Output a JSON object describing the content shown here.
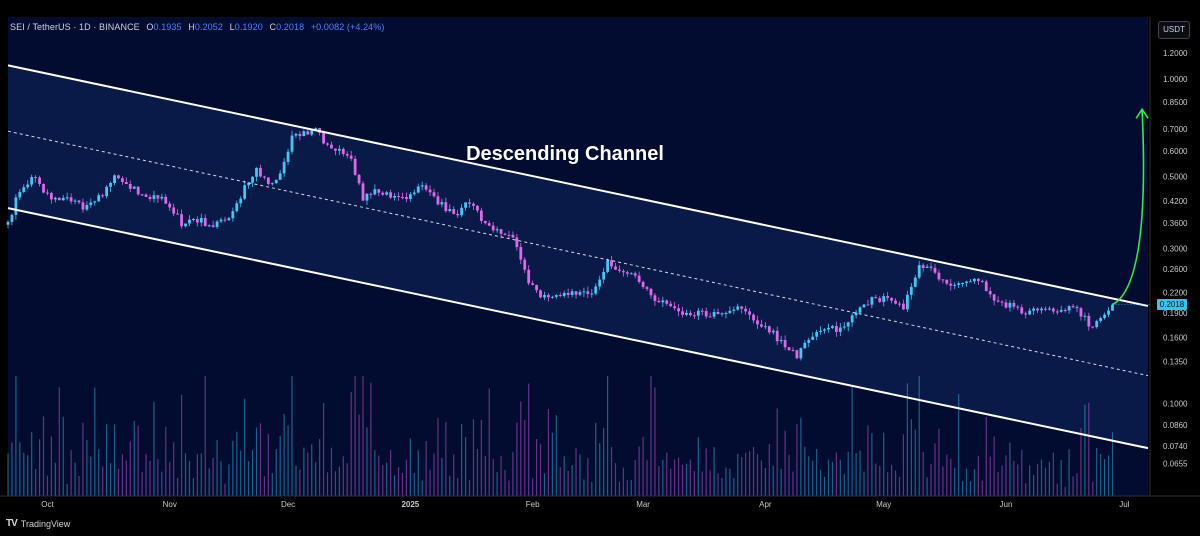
{
  "header": {
    "symbol": "SEI / TetherUS · 1D · BINANCE",
    "open_label": "O",
    "open_value": "0.1935",
    "high_label": "H",
    "high_value": "0.2052",
    "low_label": "L",
    "low_value": "0.1920",
    "close_label": "C",
    "close_value": "0.2018",
    "change": "+0.0082 (+4.24%)"
  },
  "currency_button": "USDT",
  "brand": {
    "logo": "TV",
    "name": "TradingView"
  },
  "chart_data": {
    "type": "candlestick",
    "symbol": "SEI/USDT",
    "exchange": "BINANCE",
    "timeframe": "1D",
    "title": "Descending Channel",
    "last_price": 0.2018,
    "last_price_label": "0.2018",
    "y_scale": "log",
    "y_range": [
      0.052,
      1.55
    ],
    "y_ticks": [
      "1.4000",
      "1.2000",
      "1.0000",
      "0.8500",
      "0.7000",
      "0.6000",
      "0.5000",
      "0.4200",
      "0.3600",
      "0.3000",
      "0.2600",
      "0.2200",
      "0.1900",
      "0.1600",
      "0.1350",
      "0.1000",
      "0.0860",
      "0.0740",
      "0.0655"
    ],
    "x_range": [
      "2024-09-21",
      "2025-07-07"
    ],
    "x_ticks": [
      {
        "label": "Oct",
        "date": "2024-10-01"
      },
      {
        "label": "Nov",
        "date": "2024-11-01"
      },
      {
        "label": "Dec",
        "date": "2024-12-01"
      },
      {
        "label": "2025",
        "date": "2025-01-01"
      },
      {
        "label": "Feb",
        "date": "2025-02-01"
      },
      {
        "label": "Mar",
        "date": "2025-03-01"
      },
      {
        "label": "Apr",
        "date": "2025-04-01"
      },
      {
        "label": "May",
        "date": "2025-05-01"
      },
      {
        "label": "Jun",
        "date": "2025-06-01"
      },
      {
        "label": "Jul",
        "date": "2025-07-01"
      }
    ],
    "close_path": [
      [
        "2024-09-21",
        0.36
      ],
      [
        "2024-09-24",
        0.46
      ],
      [
        "2024-09-28",
        0.5
      ],
      [
        "2024-10-02",
        0.42
      ],
      [
        "2024-10-06",
        0.44
      ],
      [
        "2024-10-10",
        0.4
      ],
      [
        "2024-10-14",
        0.43
      ],
      [
        "2024-10-18",
        0.5
      ],
      [
        "2024-10-22",
        0.46
      ],
      [
        "2024-10-26",
        0.44
      ],
      [
        "2024-10-31",
        0.42
      ],
      [
        "2024-11-04",
        0.36
      ],
      [
        "2024-11-08",
        0.37
      ],
      [
        "2024-11-12",
        0.35
      ],
      [
        "2024-11-16",
        0.38
      ],
      [
        "2024-11-20",
        0.46
      ],
      [
        "2024-11-23",
        0.53
      ],
      [
        "2024-11-26",
        0.47
      ],
      [
        "2024-11-29",
        0.5
      ],
      [
        "2024-12-02",
        0.66
      ],
      [
        "2024-12-05",
        0.68
      ],
      [
        "2024-12-08",
        0.7
      ],
      [
        "2024-12-11",
        0.62
      ],
      [
        "2024-12-13",
        0.61
      ],
      [
        "2024-12-17",
        0.57
      ],
      [
        "2024-12-20",
        0.43
      ],
      [
        "2024-12-23",
        0.46
      ],
      [
        "2024-12-27",
        0.44
      ],
      [
        "2024-12-31",
        0.42
      ],
      [
        "2025-01-04",
        0.47
      ],
      [
        "2025-01-08",
        0.42
      ],
      [
        "2025-01-12",
        0.38
      ],
      [
        "2025-01-16",
        0.42
      ],
      [
        "2025-01-20",
        0.36
      ],
      [
        "2025-01-24",
        0.33
      ],
      [
        "2025-01-27",
        0.32
      ],
      [
        "2025-01-31",
        0.24
      ],
      [
        "2025-02-03",
        0.21
      ],
      [
        "2025-02-07",
        0.22
      ],
      [
        "2025-02-12",
        0.22
      ],
      [
        "2025-02-16",
        0.22
      ],
      [
        "2025-02-20",
        0.27
      ],
      [
        "2025-02-24",
        0.26
      ],
      [
        "2025-02-28",
        0.24
      ],
      [
        "2025-03-04",
        0.21
      ],
      [
        "2025-03-08",
        0.2
      ],
      [
        "2025-03-12",
        0.19
      ],
      [
        "2025-03-17",
        0.19
      ],
      [
        "2025-03-21",
        0.19
      ],
      [
        "2025-03-25",
        0.2
      ],
      [
        "2025-03-29",
        0.18
      ],
      [
        "2025-04-02",
        0.17
      ],
      [
        "2025-04-06",
        0.15
      ],
      [
        "2025-04-09",
        0.14
      ],
      [
        "2025-04-12",
        0.16
      ],
      [
        "2025-04-16",
        0.17
      ],
      [
        "2025-04-20",
        0.17
      ],
      [
        "2025-04-24",
        0.19
      ],
      [
        "2025-04-28",
        0.21
      ],
      [
        "2025-05-02",
        0.21
      ],
      [
        "2025-05-06",
        0.2
      ],
      [
        "2025-05-10",
        0.27
      ],
      [
        "2025-05-13",
        0.26
      ],
      [
        "2025-05-17",
        0.23
      ],
      [
        "2025-05-21",
        0.23
      ],
      [
        "2025-05-25",
        0.24
      ],
      [
        "2025-05-29",
        0.21
      ],
      [
        "2025-06-02",
        0.2
      ],
      [
        "2025-06-06",
        0.19
      ],
      [
        "2025-06-10",
        0.2
      ],
      [
        "2025-06-13",
        0.19
      ],
      [
        "2025-06-17",
        0.2
      ],
      [
        "2025-06-20",
        0.19
      ],
      [
        "2025-06-23",
        0.17
      ],
      [
        "2025-06-26",
        0.19
      ],
      [
        "2025-06-28",
        0.2018
      ]
    ],
    "channel": {
      "upper": [
        [
          "2024-09-21",
          1.1
        ],
        [
          "2025-07-07",
          0.2
        ]
      ],
      "middle": [
        [
          "2024-09-21",
          0.69
        ],
        [
          "2025-07-07",
          0.122
        ]
      ],
      "lower": [
        [
          "2024-09-21",
          0.4
        ],
        [
          "2025-07-07",
          0.073
        ]
      ]
    },
    "projection_arrow": {
      "from": [
        "2025-06-28",
        0.2018
      ],
      "to": [
        "2025-07-05",
        0.8
      ]
    },
    "colors": {
      "background": "#020b30",
      "channel_fill": "#0a1a4a",
      "up_candle": "#41c9f5",
      "down_candle": "#e067e8",
      "channel_line": "#ffffff",
      "arrow": "#2ef04a",
      "axis_text": "#c8cad2",
      "last_price_tag": "#35c5ec"
    }
  }
}
